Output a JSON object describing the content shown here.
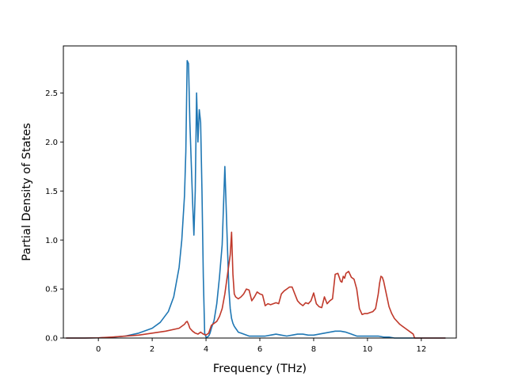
{
  "chart_data": {
    "type": "line",
    "title": "",
    "xlabel": "Frequency (THz)",
    "ylabel": "Partial Density of States",
    "xlim": [
      -1.3,
      13.3
    ],
    "ylim": [
      0,
      2.98
    ],
    "xticks": [
      0,
      2,
      4,
      6,
      8,
      10,
      12
    ],
    "yticks": [
      0.0,
      0.5,
      1.0,
      1.5,
      2.0,
      2.5
    ],
    "xtick_labels": [
      "0",
      "2",
      "4",
      "6",
      "8",
      "10",
      "12"
    ],
    "ytick_labels": [
      "0.0",
      "0.5",
      "1.0",
      "1.5",
      "2.0",
      "2.5"
    ],
    "grid": false,
    "legend": "none",
    "series": [
      {
        "color": "#1f77b4",
        "x": [
          -1.2,
          -0.5,
          0.0,
          0.5,
          1.0,
          1.5,
          2.0,
          2.3,
          2.6,
          2.8,
          3.0,
          3.1,
          3.2,
          3.25,
          3.3,
          3.35,
          3.4,
          3.45,
          3.5,
          3.55,
          3.6,
          3.65,
          3.7,
          3.75,
          3.8,
          3.85,
          3.9,
          3.95,
          4.0,
          4.05,
          4.1,
          4.15,
          4.2,
          4.3,
          4.4,
          4.5,
          4.6,
          4.7,
          4.8,
          4.85,
          4.9,
          4.95,
          5.0,
          5.05,
          5.1,
          5.15,
          5.2,
          5.3,
          5.4,
          5.5,
          5.6,
          5.7,
          5.8,
          5.9,
          6.0,
          6.1,
          6.2,
          6.4,
          6.6,
          6.8,
          7.0,
          7.2,
          7.4,
          7.6,
          7.8,
          8.0,
          8.2,
          8.4,
          8.6,
          8.8,
          9.0,
          9.2,
          9.4,
          9.6,
          9.8,
          10.0,
          10.2,
          10.4,
          10.6,
          10.8,
          11.0,
          11.5,
          12.0,
          12.5,
          12.9
        ],
        "y": [
          0.0,
          0.0,
          0.002,
          0.008,
          0.02,
          0.05,
          0.1,
          0.16,
          0.27,
          0.42,
          0.72,
          1.0,
          1.45,
          1.9,
          2.83,
          2.8,
          2.2,
          1.8,
          1.4,
          1.05,
          1.5,
          2.5,
          2.0,
          2.33,
          2.2,
          1.5,
          0.62,
          0.05,
          0.01,
          0.01,
          0.02,
          0.05,
          0.1,
          0.18,
          0.35,
          0.62,
          0.95,
          1.75,
          0.9,
          0.5,
          0.3,
          0.2,
          0.15,
          0.12,
          0.1,
          0.08,
          0.06,
          0.05,
          0.04,
          0.03,
          0.02,
          0.02,
          0.02,
          0.02,
          0.02,
          0.02,
          0.02,
          0.03,
          0.04,
          0.03,
          0.02,
          0.03,
          0.04,
          0.04,
          0.03,
          0.03,
          0.04,
          0.05,
          0.06,
          0.07,
          0.07,
          0.06,
          0.04,
          0.02,
          0.02,
          0.02,
          0.02,
          0.02,
          0.01,
          0.01,
          0.0,
          0.0,
          0.0,
          0.0,
          0.0
        ]
      },
      {
        "color": "#c0392b",
        "x": [
          -1.2,
          -0.5,
          0.0,
          0.5,
          1.0,
          1.5,
          2.0,
          2.5,
          3.0,
          3.1,
          3.2,
          3.25,
          3.3,
          3.35,
          3.4,
          3.5,
          3.6,
          3.7,
          3.8,
          3.9,
          4.0,
          4.1,
          4.2,
          4.3,
          4.4,
          4.5,
          4.6,
          4.7,
          4.8,
          4.9,
          4.95,
          5.0,
          5.05,
          5.1,
          5.2,
          5.3,
          5.4,
          5.5,
          5.6,
          5.7,
          5.8,
          5.9,
          6.0,
          6.1,
          6.2,
          6.3,
          6.4,
          6.5,
          6.6,
          6.7,
          6.8,
          6.9,
          7.0,
          7.1,
          7.2,
          7.3,
          7.4,
          7.5,
          7.6,
          7.7,
          7.8,
          7.9,
          8.0,
          8.1,
          8.2,
          8.3,
          8.4,
          8.5,
          8.6,
          8.7,
          8.8,
          8.9,
          9.0,
          9.05,
          9.1,
          9.15,
          9.2,
          9.3,
          9.4,
          9.5,
          9.6,
          9.7,
          9.8,
          9.9,
          10.0,
          10.1,
          10.2,
          10.3,
          10.4,
          10.45,
          10.5,
          10.55,
          10.6,
          10.7,
          10.8,
          10.9,
          11.0,
          11.2,
          11.4,
          11.6,
          11.7,
          11.75,
          12.0,
          12.5,
          12.9
        ],
        "y": [
          0.0,
          0.0,
          0.002,
          0.01,
          0.02,
          0.03,
          0.05,
          0.07,
          0.1,
          0.12,
          0.14,
          0.16,
          0.17,
          0.14,
          0.1,
          0.07,
          0.05,
          0.04,
          0.06,
          0.04,
          0.03,
          0.05,
          0.13,
          0.15,
          0.17,
          0.22,
          0.3,
          0.45,
          0.65,
          0.85,
          1.08,
          0.65,
          0.45,
          0.42,
          0.4,
          0.42,
          0.45,
          0.5,
          0.49,
          0.38,
          0.42,
          0.47,
          0.45,
          0.44,
          0.33,
          0.35,
          0.34,
          0.35,
          0.36,
          0.35,
          0.45,
          0.48,
          0.5,
          0.52,
          0.52,
          0.45,
          0.38,
          0.35,
          0.33,
          0.36,
          0.35,
          0.38,
          0.46,
          0.35,
          0.32,
          0.31,
          0.42,
          0.35,
          0.38,
          0.4,
          0.65,
          0.66,
          0.58,
          0.57,
          0.63,
          0.61,
          0.66,
          0.68,
          0.62,
          0.6,
          0.5,
          0.3,
          0.24,
          0.25,
          0.25,
          0.26,
          0.27,
          0.3,
          0.45,
          0.56,
          0.63,
          0.62,
          0.58,
          0.45,
          0.32,
          0.25,
          0.2,
          0.14,
          0.1,
          0.06,
          0.04,
          0.0,
          0.0,
          0.0,
          0.0
        ]
      }
    ]
  }
}
